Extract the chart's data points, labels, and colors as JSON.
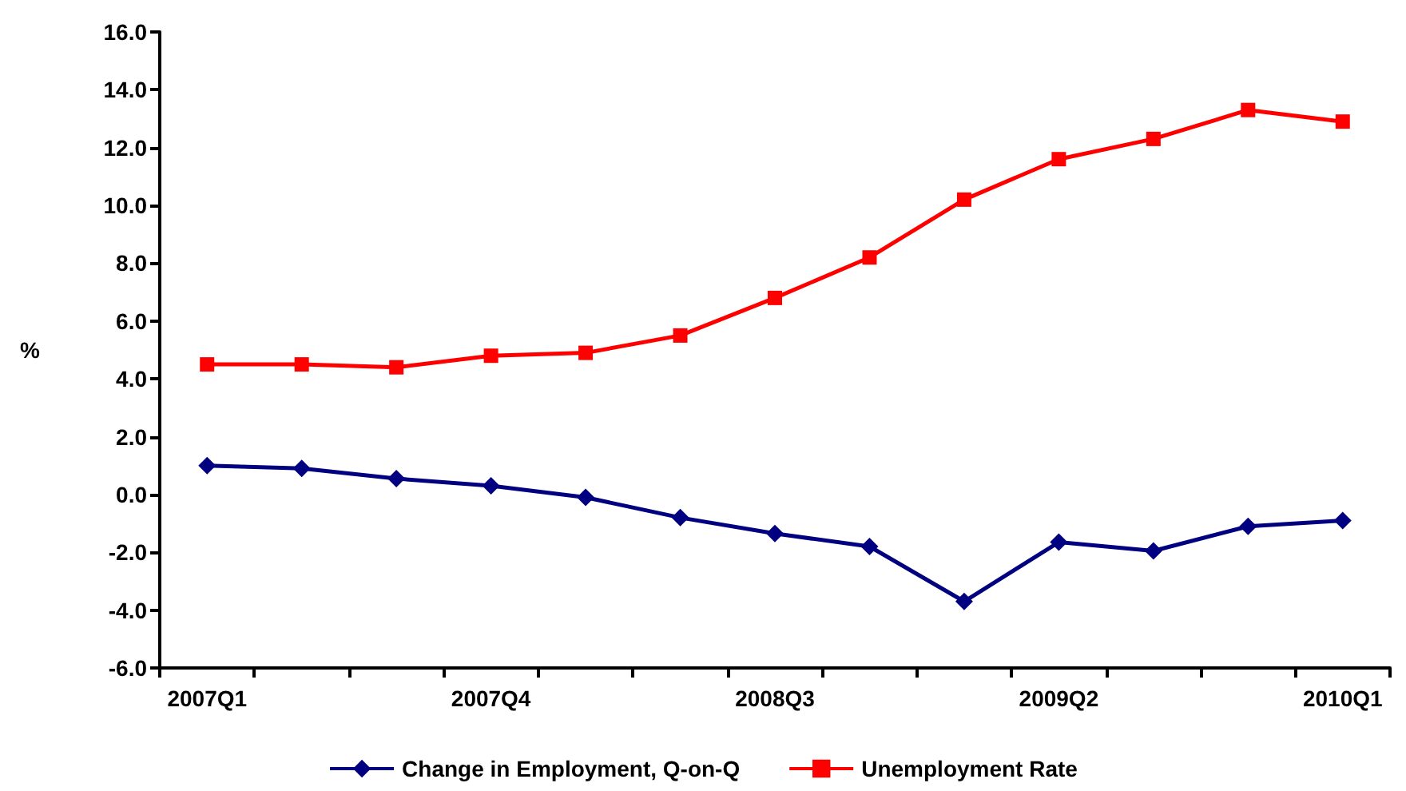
{
  "chart_data": {
    "type": "line",
    "ylabel": "%",
    "categories": [
      "2007Q1",
      null,
      null,
      "2007Q4",
      null,
      null,
      "2008Q3",
      null,
      null,
      "2009Q2",
      null,
      null,
      "2010Q1"
    ],
    "series": [
      {
        "name": "Change in Employment, Q-on-Q",
        "color": "#000080",
        "marker": "diamond",
        "values": [
          1.0,
          0.9,
          0.55,
          0.3,
          -0.1,
          -0.8,
          -1.35,
          -1.8,
          -3.7,
          -1.65,
          -1.95,
          -1.1,
          -0.9
        ]
      },
      {
        "name": "Unemployment Rate",
        "color": "#ff0000",
        "marker": "square",
        "values": [
          4.5,
          4.5,
          4.4,
          4.8,
          4.9,
          5.5,
          6.8,
          8.2,
          10.2,
          11.6,
          12.3,
          13.3,
          12.9
        ]
      }
    ],
    "ylim": [
      -6,
      16
    ],
    "yticks": [
      {
        "value": -6,
        "label": "-6.0"
      },
      {
        "value": -4,
        "label": "-4.0"
      },
      {
        "value": -2,
        "label": "-2.0"
      },
      {
        "value": 0,
        "label": "0.0"
      },
      {
        "value": 2,
        "label": "2.0"
      },
      {
        "value": 4,
        "label": "4.0"
      },
      {
        "value": 6,
        "label": "6.0"
      },
      {
        "value": 8,
        "label": "8.0"
      },
      {
        "value": 10,
        "label": "10.0"
      },
      {
        "value": 12,
        "label": "12.0"
      },
      {
        "value": 14,
        "label": "14.0"
      },
      {
        "value": 16,
        "label": "16.0"
      }
    ],
    "grid": false,
    "legend": "bottom",
    "line_style": "solid"
  }
}
